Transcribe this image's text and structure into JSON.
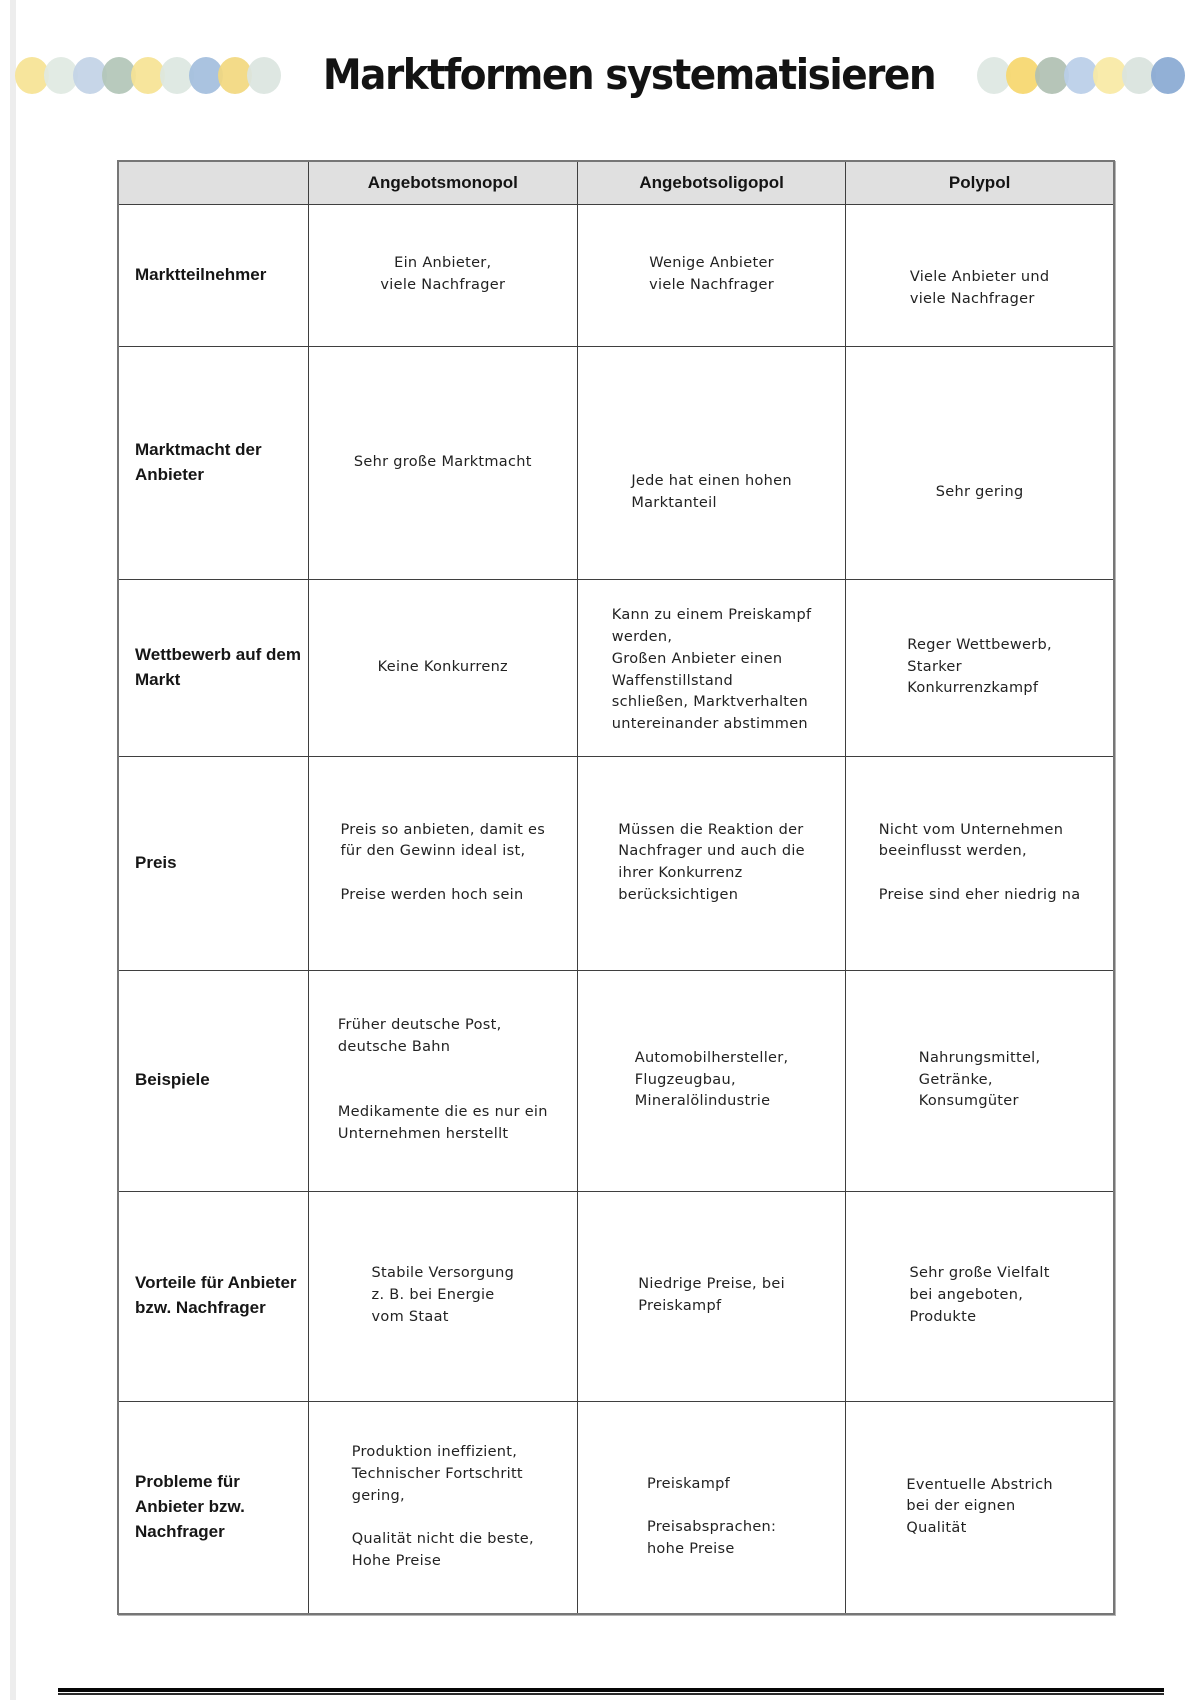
{
  "page": {
    "title": "Marktformen systematisieren"
  },
  "decorations": {
    "left_dots": [
      "#f6e394",
      "#dfe9e2",
      "#c2d3e6",
      "#b2c5b7",
      "#f6e394",
      "#dce7e1",
      "#a3bedd",
      "#f2d87f",
      "#dbe5df"
    ],
    "right_dots": [
      "#dde7e2",
      "#f6d76e",
      "#b0c0b2",
      "#bacee8",
      "#f8e9a4",
      "#d9e3dd",
      "#89a9d3"
    ]
  },
  "table": {
    "column_headers": [
      "",
      "Angebotsmonopol",
      "Angebotsoligopol",
      "Polypol"
    ],
    "rows": [
      {
        "label": "Marktteilnehmer",
        "cells": [
          "Ein Anbieter,\nviele Nachfrager",
          "Wenige Anbieter\nviele Nachfrager",
          "Viele Anbieter und\nviele Nachfrager"
        ]
      },
      {
        "label": "Marktmacht\nder Anbieter",
        "cells": [
          "Sehr große Marktmacht",
          "Jede hat einen hohen\nMarktanteil",
          "Sehr gering"
        ]
      },
      {
        "label": "Wettbewerb\nauf dem Markt",
        "cells": [
          "Keine Konkurrenz",
          "Kann zu einem Preiskampf\nwerden,\nGroßen Anbieter einen\nWaffenstillstand\nschließen, Marktverhalten\nuntereinander abstimmen",
          "Reger Wettbewerb,\nStarker\nKonkurrenzkampf"
        ]
      },
      {
        "label": "Preis",
        "cells": [
          "Preis so anbieten, damit es\nfür den Gewinn ideal ist,\n\nPreise werden hoch sein",
          "Müssen die Reaktion der\nNachfrager und auch die\nihrer Konkurrenz\nberücksichtigen",
          "Nicht vom Unternehmen\nbeeinflusst werden,\n\nPreise sind eher niedrig na"
        ]
      },
      {
        "label": "Beispiele",
        "cells": [
          "Früher deutsche Post,\ndeutsche Bahn\n\n\nMedikamente die es nur ein\nUnternehmen herstellt",
          "Automobilhersteller,\nFlugzeugbau,\nMineralölindustrie",
          "Nahrungsmittel,\nGetränke,\nKonsumgüter"
        ]
      },
      {
        "label": "Vorteile für\nAnbieter bzw.\nNachfrager",
        "cells": [
          "Stabile Versorgung\nz. B. bei Energie\nvom Staat",
          "Niedrige Preise, bei\nPreiskampf",
          "Sehr große Vielfalt\nbei angeboten,\nProdukte"
        ]
      },
      {
        "label": "Probleme für\nAnbieter bzw.\nNachfrager",
        "cells": [
          "Produktion ineffizient,\nTechnischer Fortschritt\ngering,\n\nQualität nicht die beste,\nHohe Preise",
          "Preiskampf\n\nPreisabsprachen:\nhohe Preise",
          "Eventuelle Abstrich\nbei der eignen\nQualität"
        ]
      }
    ]
  }
}
